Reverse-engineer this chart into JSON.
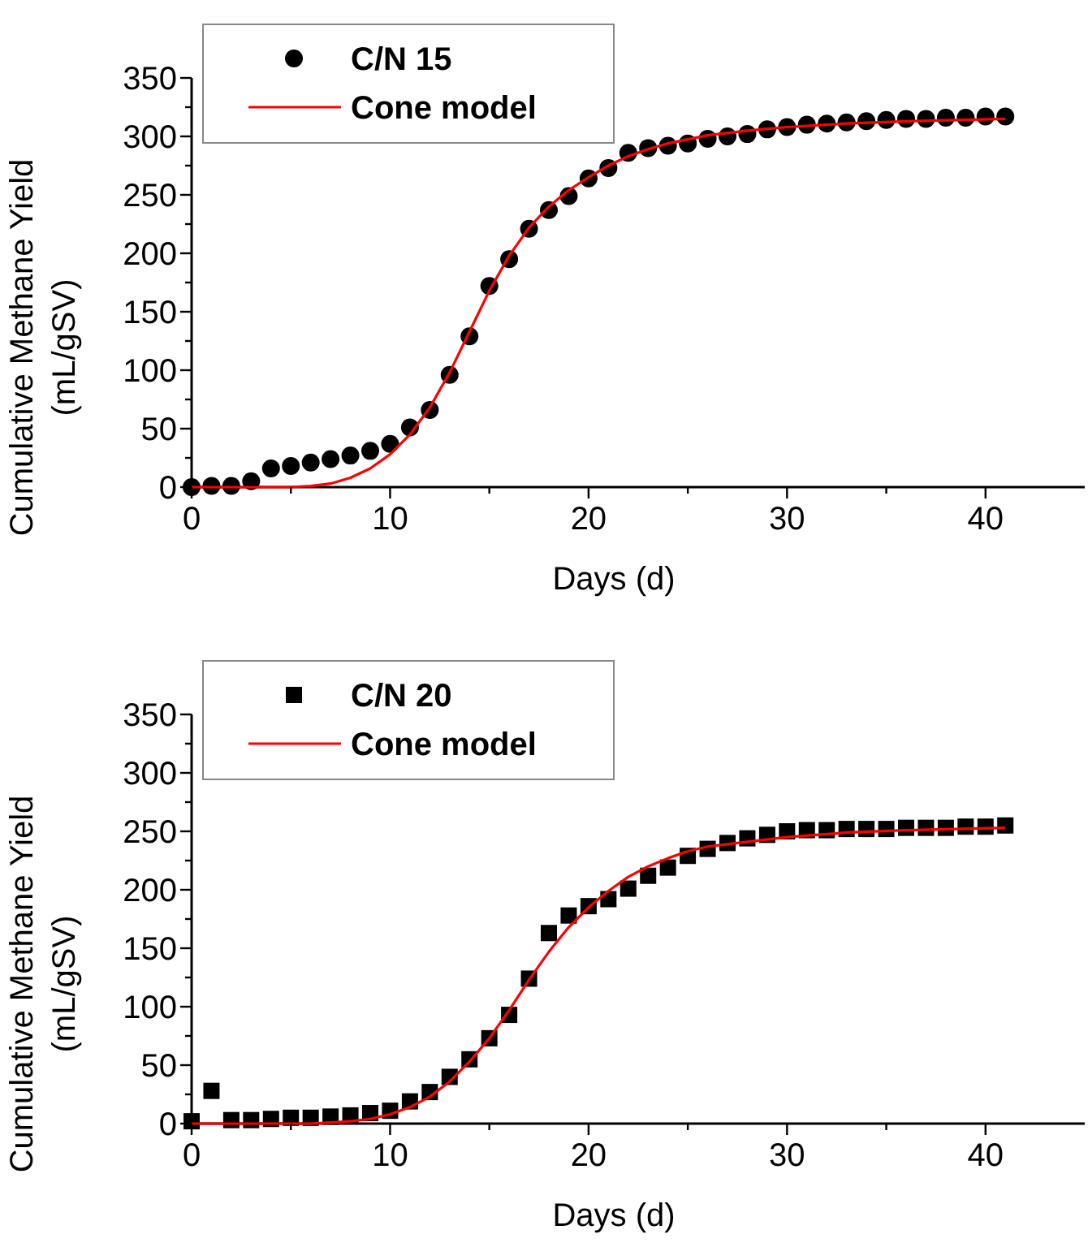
{
  "chart_data": [
    {
      "type": "scatter",
      "xlabel": "Days (d)",
      "ylabel": "Cumulative Methane Yield\n(mL/gSV)",
      "xlim": [
        0,
        45
      ],
      "ylim": [
        0,
        350
      ],
      "xticks": [
        0,
        {
          "value": 5,
          "label": null
        },
        10,
        {
          "value": 15,
          "label": null
        },
        20,
        {
          "value": 25,
          "label": null
        },
        30,
        {
          "value": 35,
          "label": null
        },
        40
      ],
      "yticks": [
        0,
        {
          "value": 25,
          "label": null
        },
        50,
        {
          "value": 75,
          "label": null
        },
        100,
        {
          "value": 125,
          "label": null
        },
        150,
        {
          "value": 175,
          "label": null
        },
        200,
        {
          "value": 225,
          "label": null
        },
        250,
        {
          "value": 275,
          "label": null
        },
        300,
        {
          "value": 325,
          "label": null
        },
        350
      ],
      "legend": "top left",
      "grid": false,
      "series": [
        {
          "name": "C/N 15",
          "marker": "circle",
          "color": "#000000",
          "x": [
            0,
            1,
            2,
            3,
            4,
            5,
            6,
            7,
            8,
            9,
            10,
            11,
            12,
            13,
            14,
            15,
            16,
            17,
            18,
            19,
            20,
            21,
            22,
            23,
            24,
            25,
            26,
            27,
            28,
            29,
            30,
            31,
            32,
            33,
            34,
            35,
            36,
            37,
            38,
            39,
            40,
            41
          ],
          "values": [
            0,
            1,
            1,
            5,
            16,
            18,
            21,
            24,
            27,
            31,
            37,
            51,
            66,
            96,
            129,
            172,
            195,
            221,
            237,
            249,
            264,
            273,
            286,
            290,
            292,
            294,
            298,
            300,
            302,
            306,
            308,
            310,
            311,
            312,
            313,
            314,
            315,
            315,
            316,
            316,
            317,
            317
          ]
        },
        {
          "name": "Cone model",
          "type": "line",
          "marker": "none",
          "line_style": "solid",
          "color": "#ff0000",
          "x": [
            0,
            4,
            5,
            6,
            7,
            8,
            9,
            10,
            11,
            12,
            13,
            14,
            15,
            16,
            17,
            18,
            19,
            20,
            21,
            22,
            23,
            24,
            26,
            28,
            30,
            33,
            36,
            41
          ],
          "values": [
            0,
            0,
            0,
            1,
            3,
            8,
            16,
            28,
            45,
            68,
            98,
            133,
            168,
            198,
            222,
            240,
            254,
            265,
            275,
            283,
            289,
            294,
            301,
            305,
            308,
            311,
            313,
            315
          ]
        }
      ]
    },
    {
      "type": "scatter",
      "xlabel": "Days (d)",
      "ylabel": "Cumulative Methane Yield\n(mL/gSV)",
      "xlim": [
        0,
        45
      ],
      "ylim": [
        0,
        350
      ],
      "xticks": [
        0,
        {
          "value": 5,
          "label": null
        },
        10,
        {
          "value": 15,
          "label": null
        },
        20,
        {
          "value": 25,
          "label": null
        },
        30,
        {
          "value": 35,
          "label": null
        },
        40
      ],
      "yticks": [
        0,
        {
          "value": 25,
          "label": null
        },
        50,
        {
          "value": 75,
          "label": null
        },
        100,
        {
          "value": 125,
          "label": null
        },
        150,
        {
          "value": 175,
          "label": null
        },
        200,
        {
          "value": 225,
          "label": null
        },
        250,
        {
          "value": 275,
          "label": null
        },
        300,
        {
          "value": 325,
          "label": null
        },
        350
      ],
      "legend": "top left",
      "grid": false,
      "series": [
        {
          "name": "C/N 20",
          "marker": "square",
          "color": "#000000",
          "x": [
            0,
            1,
            2,
            3,
            4,
            5,
            6,
            7,
            8,
            9,
            10,
            11,
            12,
            13,
            14,
            15,
            16,
            17,
            18,
            19,
            20,
            21,
            22,
            23,
            24,
            25,
            26,
            27,
            28,
            29,
            30,
            31,
            32,
            33,
            34,
            35,
            36,
            37,
            38,
            39,
            40,
            41
          ],
          "values": [
            2,
            28,
            3,
            3,
            4,
            5,
            5,
            6,
            7,
            9,
            11,
            19,
            27,
            40,
            55,
            73,
            93,
            124,
            163,
            178,
            186,
            192,
            201,
            212,
            219,
            229,
            235,
            240,
            244,
            247,
            250,
            251,
            251,
            252,
            252,
            252,
            253,
            253,
            253,
            254,
            254,
            255
          ]
        },
        {
          "name": "Cone model",
          "type": "line",
          "marker": "none",
          "line_style": "solid",
          "color": "#ff0000",
          "x": [
            0,
            5,
            6,
            7,
            8,
            9,
            10,
            11,
            12,
            13,
            14,
            15,
            16,
            17,
            18,
            19,
            20,
            21,
            22,
            23,
            24,
            25,
            26,
            28,
            30,
            33,
            36,
            41
          ],
          "values": [
            0,
            0,
            0,
            1,
            2,
            4,
            8,
            14,
            23,
            36,
            53,
            73,
            97,
            123,
            147,
            168,
            185,
            199,
            211,
            220,
            227,
            233,
            237,
            241,
            245,
            249,
            251,
            253
          ]
        }
      ]
    }
  ]
}
